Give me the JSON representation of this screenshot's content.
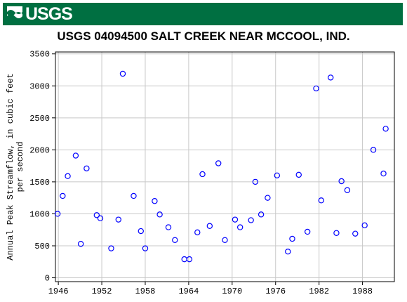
{
  "banner": {
    "logo_text": "USGS",
    "logo_icon": "usgs-wave-icon",
    "color": "#006F41"
  },
  "chart_data": {
    "type": "scatter",
    "title": "USGS 04094500 SALT CREEK NEAR MCCOOL, IND.",
    "ylabel_lines": [
      "Annual Peak Streamflow, in cubic feet",
      "per second"
    ],
    "xlabel": "",
    "xlim": [
      1945.6,
      1992.4
    ],
    "ylim": [
      -60,
      3530
    ],
    "x_ticks": [
      1946,
      1952,
      1958,
      1964,
      1970,
      1976,
      1982,
      1988
    ],
    "y_ticks": [
      0,
      500,
      1000,
      1500,
      2000,
      2500,
      3000,
      3500
    ],
    "x_tick_labels": [
      "1946",
      "1952",
      "1958",
      "1964",
      "1970",
      "1976",
      "1982",
      "1988"
    ],
    "y_tick_labels": [
      "0",
      "500",
      "1000",
      "1500",
      "2000",
      "2500",
      "3000",
      "3500"
    ],
    "grid": true,
    "marker": "open-circle",
    "marker_color": "#0000FF",
    "grid_color": "#C8C8C8",
    "points": [
      {
        "x": 1945.9,
        "y": 1000
      },
      {
        "x": 1946.6,
        "y": 1280
      },
      {
        "x": 1947.3,
        "y": 1590
      },
      {
        "x": 1948.4,
        "y": 1910
      },
      {
        "x": 1949.1,
        "y": 530
      },
      {
        "x": 1949.9,
        "y": 1710
      },
      {
        "x": 1951.3,
        "y": 980
      },
      {
        "x": 1951.8,
        "y": 930
      },
      {
        "x": 1953.3,
        "y": 460
      },
      {
        "x": 1954.3,
        "y": 910
      },
      {
        "x": 1954.9,
        "y": 3190
      },
      {
        "x": 1956.4,
        "y": 1280
      },
      {
        "x": 1957.4,
        "y": 730
      },
      {
        "x": 1958.0,
        "y": 460
      },
      {
        "x": 1959.3,
        "y": 1200
      },
      {
        "x": 1960.0,
        "y": 990
      },
      {
        "x": 1961.2,
        "y": 790
      },
      {
        "x": 1962.1,
        "y": 590
      },
      {
        "x": 1963.4,
        "y": 290
      },
      {
        "x": 1964.1,
        "y": 290
      },
      {
        "x": 1965.2,
        "y": 710
      },
      {
        "x": 1965.9,
        "y": 1620
      },
      {
        "x": 1966.9,
        "y": 810
      },
      {
        "x": 1968.1,
        "y": 1790
      },
      {
        "x": 1969.0,
        "y": 590
      },
      {
        "x": 1970.4,
        "y": 910
      },
      {
        "x": 1971.1,
        "y": 790
      },
      {
        "x": 1972.6,
        "y": 900
      },
      {
        "x": 1973.2,
        "y": 1500
      },
      {
        "x": 1974.0,
        "y": 990
      },
      {
        "x": 1974.9,
        "y": 1250
      },
      {
        "x": 1976.2,
        "y": 1600
      },
      {
        "x": 1977.7,
        "y": 410
      },
      {
        "x": 1978.3,
        "y": 610
      },
      {
        "x": 1979.2,
        "y": 1610
      },
      {
        "x": 1980.4,
        "y": 720
      },
      {
        "x": 1981.6,
        "y": 2960
      },
      {
        "x": 1982.3,
        "y": 1210
      },
      {
        "x": 1983.6,
        "y": 3130
      },
      {
        "x": 1984.4,
        "y": 700
      },
      {
        "x": 1985.1,
        "y": 1510
      },
      {
        "x": 1985.9,
        "y": 1370
      },
      {
        "x": 1987.0,
        "y": 690
      },
      {
        "x": 1988.3,
        "y": 820
      },
      {
        "x": 1989.5,
        "y": 2000
      },
      {
        "x": 1990.9,
        "y": 1630
      },
      {
        "x": 1991.2,
        "y": 2330
      }
    ]
  }
}
